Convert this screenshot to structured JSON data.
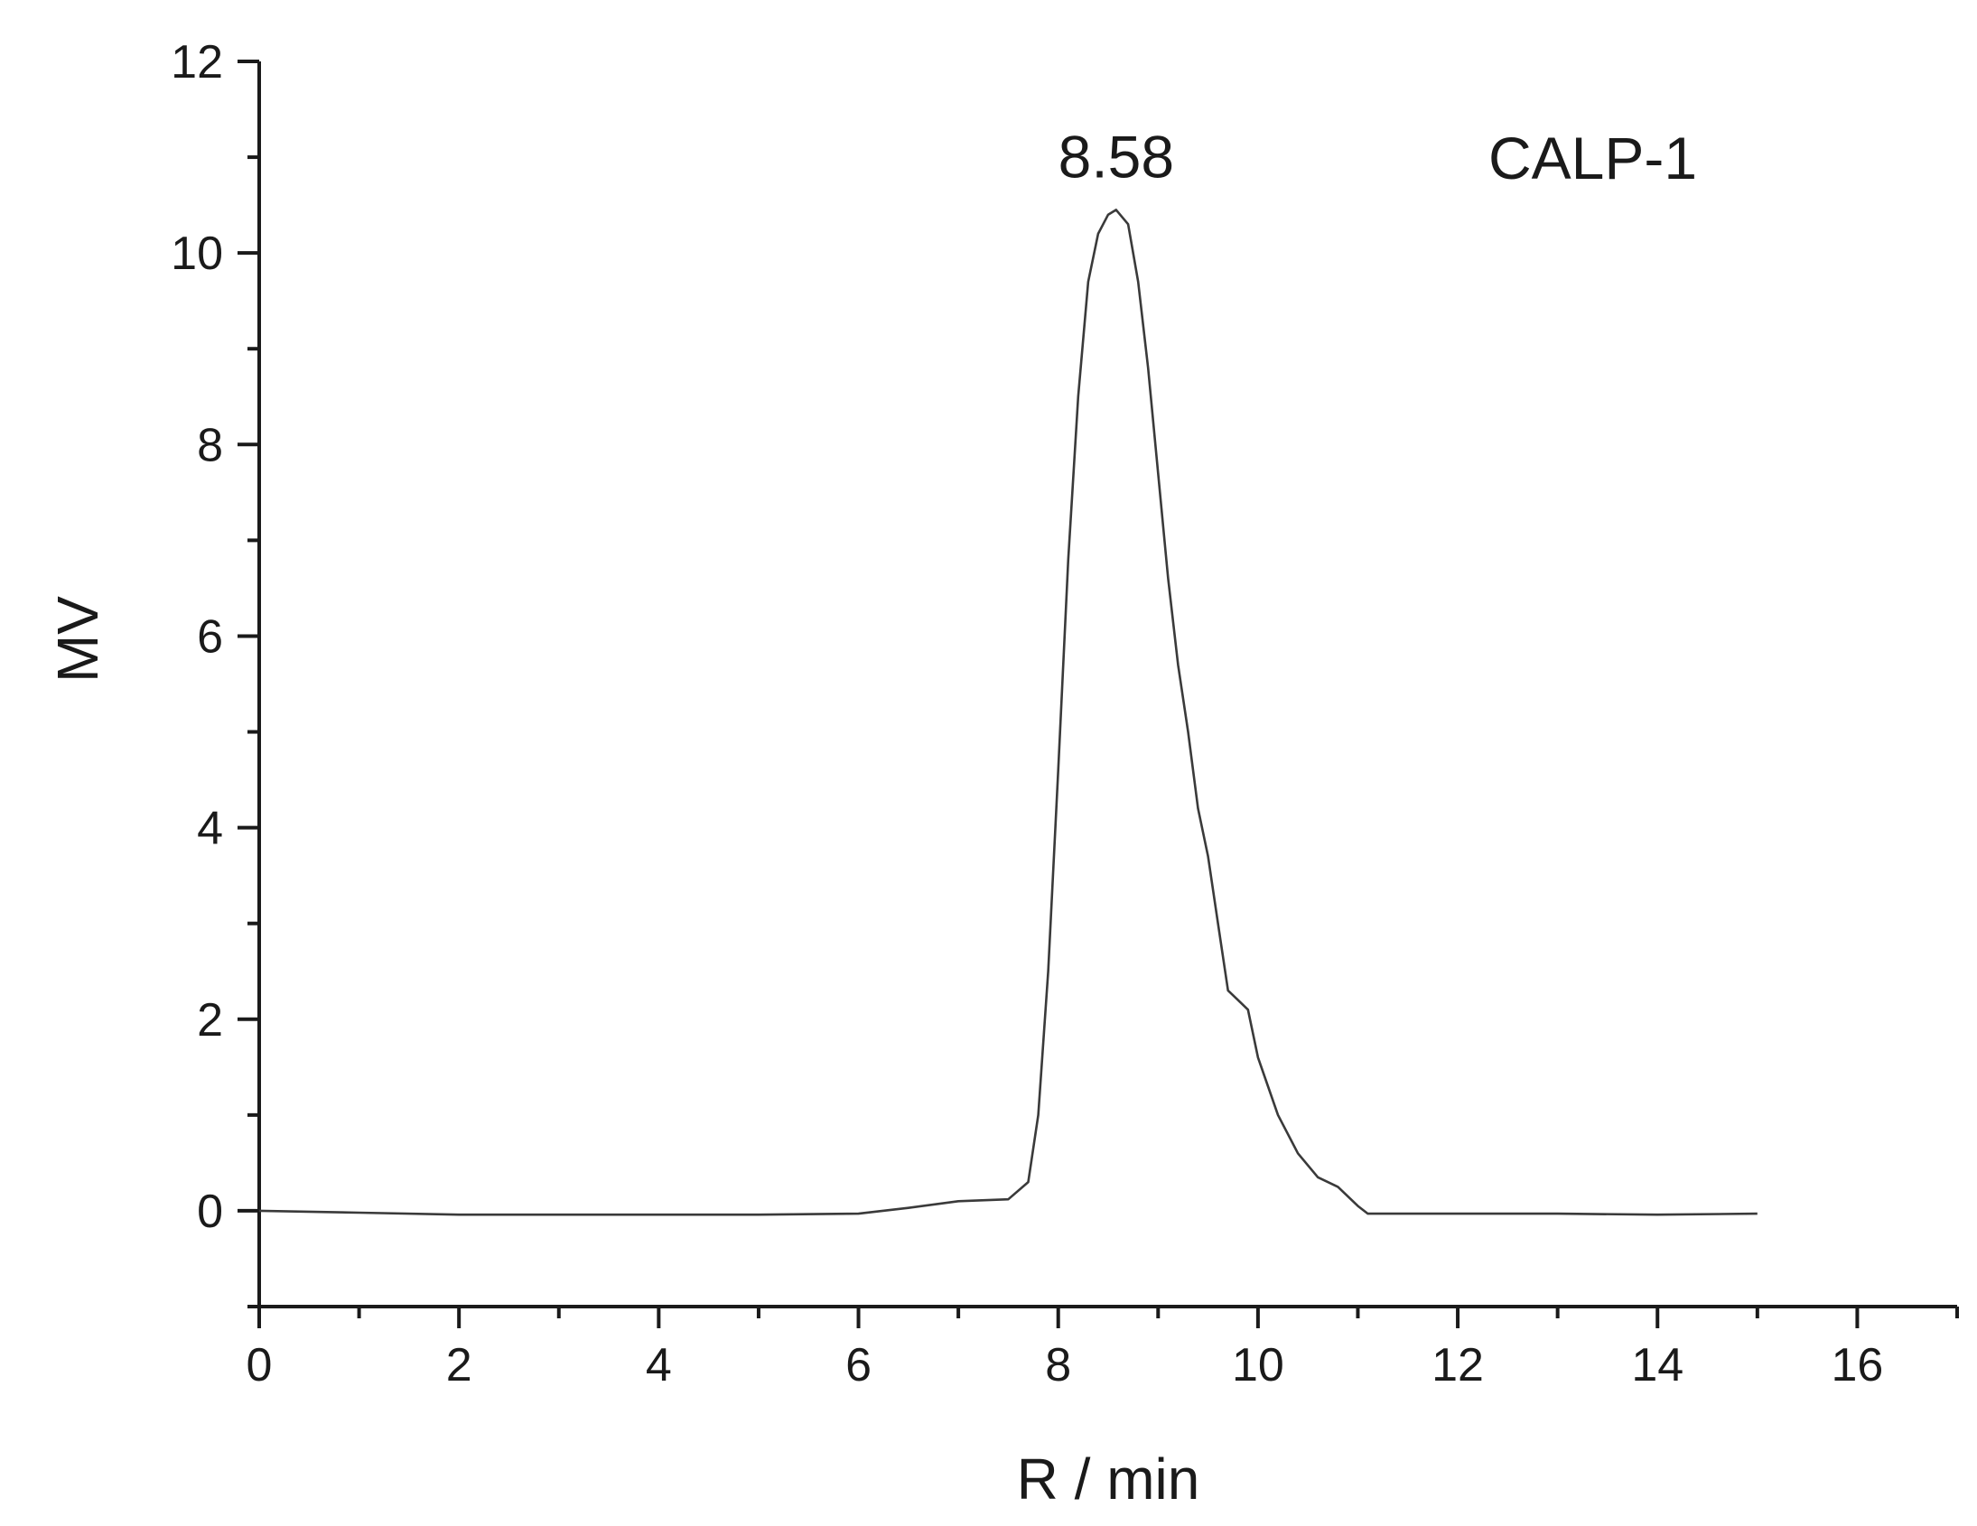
{
  "chart_data": {
    "type": "line",
    "xlabel": "R / min",
    "ylabel": "MV",
    "xlim": [
      0,
      17
    ],
    "ylim": [
      -1,
      12
    ],
    "x_ticks": [
      0,
      2,
      4,
      6,
      8,
      10,
      12,
      14,
      16
    ],
    "y_ticks": [
      0,
      2,
      4,
      6,
      8,
      10,
      12
    ],
    "x_minor_step": 1,
    "y_minor_step": 1,
    "grid": false,
    "annotations": [
      {
        "text": "8.58",
        "x": 8.58,
        "y": 10.45,
        "kind": "peak-label"
      },
      {
        "text": "CALP-1",
        "placement": "top-right",
        "kind": "sample-label"
      }
    ],
    "series": [
      {
        "x": [
          0,
          1,
          2,
          3,
          4,
          5,
          6,
          6.5,
          7,
          7.5,
          7.7,
          7.8,
          7.9,
          8.0,
          8.1,
          8.2,
          8.3,
          8.4,
          8.5,
          8.58,
          8.7,
          8.8,
          8.9,
          9.0,
          9.1,
          9.2,
          9.3,
          9.4,
          9.5,
          9.6,
          9.7,
          9.8,
          9.9,
          10.0,
          10.2,
          10.4,
          10.6,
          10.8,
          11.0,
          11.1,
          12,
          13,
          14,
          15
        ],
        "y": [
          0.0,
          -0.02,
          -0.04,
          -0.04,
          -0.04,
          -0.04,
          -0.03,
          0.03,
          0.1,
          0.12,
          0.3,
          1.0,
          2.5,
          4.6,
          6.8,
          8.5,
          9.7,
          10.2,
          10.4,
          10.45,
          10.3,
          9.7,
          8.8,
          7.7,
          6.6,
          5.7,
          5.0,
          4.2,
          3.7,
          3.0,
          2.3,
          2.2,
          2.1,
          1.6,
          1.0,
          0.6,
          0.35,
          0.25,
          0.05,
          -0.03,
          -0.03,
          -0.03,
          -0.04,
          -0.03
        ]
      }
    ]
  }
}
